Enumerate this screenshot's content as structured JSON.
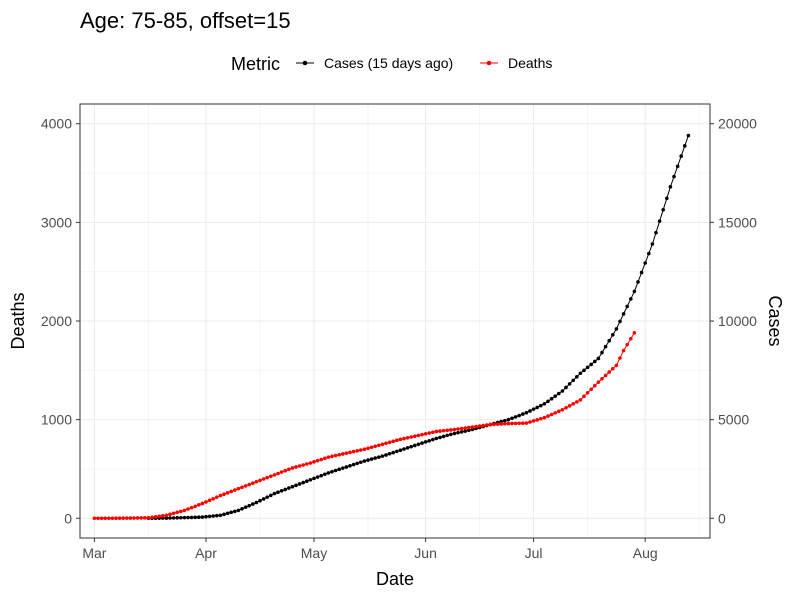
{
  "chart_data": {
    "type": "line",
    "title": "Age: 75-85, offset=15",
    "xlabel": "Date",
    "ylabel": "Deaths",
    "y2label": "Cases",
    "legend": {
      "title": "Metric",
      "position": "top",
      "entries": [
        {
          "name": "Cases (15 days ago)",
          "color": "#000000"
        },
        {
          "name": "Deaths",
          "color": "#ff0000"
        }
      ]
    },
    "grid": true,
    "xlim": [
      "2020-02-26",
      "2020-08-19"
    ],
    "ylim": [
      -200,
      4200
    ],
    "y2lim": [
      -1000,
      21000
    ],
    "x_ticks": [
      {
        "date": "2020-03-01",
        "label": "Mar"
      },
      {
        "date": "2020-04-01",
        "label": "Apr"
      },
      {
        "date": "2020-05-01",
        "label": "May"
      },
      {
        "date": "2020-06-01",
        "label": "Jun"
      },
      {
        "date": "2020-07-01",
        "label": "Jul"
      },
      {
        "date": "2020-08-01",
        "label": "Aug"
      }
    ],
    "y_ticks": [
      0,
      1000,
      2000,
      3000,
      4000
    ],
    "y2_ticks": [
      0,
      5000,
      10000,
      15000,
      20000
    ],
    "series": [
      {
        "name": "Cases (15 days ago)",
        "axis": "right",
        "color": "#000000",
        "points": [
          [
            "2020-03-16",
            0
          ],
          [
            "2020-03-21",
            10
          ],
          [
            "2020-03-26",
            30
          ],
          [
            "2020-03-31",
            60
          ],
          [
            "2020-04-05",
            150
          ],
          [
            "2020-04-10",
            400
          ],
          [
            "2020-04-15",
            800
          ],
          [
            "2020-04-20",
            1250
          ],
          [
            "2020-04-25",
            1600
          ],
          [
            "2020-04-30",
            1950
          ],
          [
            "2020-05-05",
            2300
          ],
          [
            "2020-05-10",
            2600
          ],
          [
            "2020-05-15",
            2900
          ],
          [
            "2020-05-20",
            3150
          ],
          [
            "2020-05-25",
            3450
          ],
          [
            "2020-05-30",
            3750
          ],
          [
            "2020-06-04",
            4050
          ],
          [
            "2020-06-09",
            4300
          ],
          [
            "2020-06-14",
            4500
          ],
          [
            "2020-06-19",
            4750
          ],
          [
            "2020-06-24",
            5000
          ],
          [
            "2020-06-29",
            5350
          ],
          [
            "2020-07-04",
            5800
          ],
          [
            "2020-07-09",
            6450
          ],
          [
            "2020-07-14",
            7350
          ],
          [
            "2020-07-19",
            8100
          ],
          [
            "2020-07-24",
            9600
          ],
          [
            "2020-07-29",
            11500
          ],
          [
            "2020-08-03",
            13900
          ],
          [
            "2020-08-08",
            16800
          ],
          [
            "2020-08-13",
            19400
          ]
        ]
      },
      {
        "name": "Deaths",
        "axis": "left",
        "color": "#ff0000",
        "points": [
          [
            "2020-03-01",
            0
          ],
          [
            "2020-03-06",
            0
          ],
          [
            "2020-03-11",
            2
          ],
          [
            "2020-03-16",
            5
          ],
          [
            "2020-03-21",
            30
          ],
          [
            "2020-03-26",
            80
          ],
          [
            "2020-03-31",
            150
          ],
          [
            "2020-04-05",
            230
          ],
          [
            "2020-04-10",
            300
          ],
          [
            "2020-04-15",
            370
          ],
          [
            "2020-04-20",
            440
          ],
          [
            "2020-04-25",
            510
          ],
          [
            "2020-04-30",
            560
          ],
          [
            "2020-05-05",
            620
          ],
          [
            "2020-05-10",
            660
          ],
          [
            "2020-05-15",
            700
          ],
          [
            "2020-05-20",
            750
          ],
          [
            "2020-05-25",
            800
          ],
          [
            "2020-05-30",
            840
          ],
          [
            "2020-06-04",
            880
          ],
          [
            "2020-06-09",
            900
          ],
          [
            "2020-06-14",
            925
          ],
          [
            "2020-06-19",
            950
          ],
          [
            "2020-06-24",
            960
          ],
          [
            "2020-06-29",
            965
          ],
          [
            "2020-07-04",
            1020
          ],
          [
            "2020-07-09",
            1100
          ],
          [
            "2020-07-14",
            1200
          ],
          [
            "2020-07-19",
            1380
          ],
          [
            "2020-07-24",
            1550
          ],
          [
            "2020-07-26",
            1700
          ],
          [
            "2020-07-29",
            1880
          ]
        ]
      }
    ]
  }
}
